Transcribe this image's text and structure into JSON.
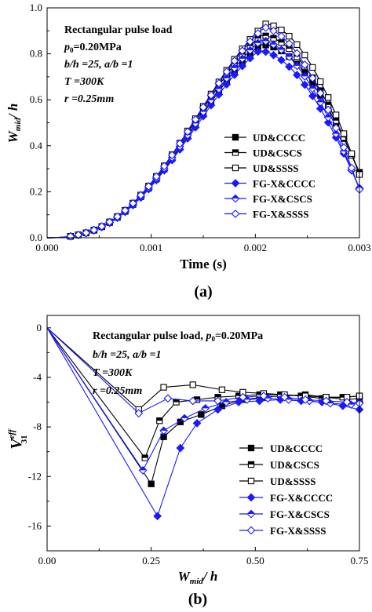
{
  "chart_data": [
    {
      "type": "line",
      "panel_label": "(a)",
      "xlabel": "Time (s)",
      "ylabel": {
        "main": "W",
        "sub": "mid",
        "rest": "/ h"
      },
      "xlim": [
        0,
        0.003
      ],
      "ylim": [
        0,
        1.0
      ],
      "xticks": [
        "0.000",
        "0.001",
        "0.002",
        "0.003"
      ],
      "yticks": [
        "0.0",
        "0.2",
        "0.4",
        "0.6",
        "0.8",
        "1.0"
      ],
      "annotations": {
        "line1": "Rectangular pulse load",
        "line2": {
          "p": "p",
          "sub": "0",
          "rest": "=0.20MPa"
        },
        "line3": "b/h =25, a/b =1",
        "line4": "T =300K",
        "line5": "r =0.25mm"
      },
      "legend_position": "right",
      "series": [
        {
          "name": "UD&CCCC",
          "color": "#000000",
          "marker": "square-filled",
          "peak_y": 0.84,
          "peak_x": 0.00205
        },
        {
          "name": "UD&CSCS",
          "color": "#000000",
          "marker": "square-half",
          "peak_y": 0.88,
          "peak_x": 0.00206
        },
        {
          "name": "UD&SSSS",
          "color": "#000000",
          "marker": "square-open",
          "peak_y": 0.93,
          "peak_x": 0.0021
        },
        {
          "name": "FG-X&CCCC",
          "color": "#1a1aff",
          "marker": "diamond-filled",
          "peak_y": 0.815,
          "peak_x": 0.00204
        },
        {
          "name": "FG-X&CSCS",
          "color": "#1a1aff",
          "marker": "diamond-half",
          "peak_y": 0.86,
          "peak_x": 0.00206
        },
        {
          "name": "FG-X&SSSS",
          "color": "#1a1aff",
          "marker": "diamond-open",
          "peak_y": 0.915,
          "peak_x": 0.00209
        }
      ]
    },
    {
      "type": "line",
      "panel_label": "(b)",
      "xlabel": {
        "main": "W",
        "sub": "mid",
        "rest": "/ h"
      },
      "ylabel": {
        "main": "V",
        "sup": "eff",
        "sub": "31"
      },
      "xlim": [
        0,
        0.75
      ],
      "ylim": [
        -18,
        1
      ],
      "xticks": [
        "0.00",
        "0.25",
        "0.50",
        "0.75"
      ],
      "yticks": [
        "0",
        "-4",
        "-8",
        "-12",
        "-16"
      ],
      "annotations": {
        "line1": {
          "pre": "Rectangular pulse load, ",
          "p": "p",
          "sub": "0",
          "rest": "=0.20MPa"
        },
        "line2": "b/h =25, a/b =1",
        "line3": "T =300K",
        "line4": "r =0.25mm"
      },
      "legend_position": "bottom-right",
      "series": [
        {
          "name": "UD&CCCC",
          "color": "#000000",
          "marker": "square-filled",
          "x": [
            0,
            0.25,
            0.28,
            0.32,
            0.37,
            0.42,
            0.47,
            0.52,
            0.57,
            0.62,
            0.67,
            0.72,
            0.75
          ],
          "y": [
            0,
            -12.6,
            -8.8,
            -7.6,
            -7.0,
            -6.3,
            -5.8,
            -5.6,
            -5.5,
            -5.4,
            -5.6,
            -5.8,
            -5.7
          ]
        },
        {
          "name": "UD&CSCS",
          "color": "#000000",
          "marker": "square-half",
          "x": [
            0,
            0.235,
            0.27,
            0.31,
            0.36,
            0.41,
            0.46,
            0.51,
            0.56,
            0.61,
            0.66,
            0.71,
            0.75
          ],
          "y": [
            0,
            -10.5,
            -7.5,
            -6.0,
            -5.8,
            -5.6,
            -5.5,
            -5.4,
            -5.4,
            -5.5,
            -5.7,
            -5.6,
            -5.5
          ]
        },
        {
          "name": "UD&SSSS",
          "color": "#000000",
          "marker": "square-open",
          "x": [
            0,
            0.22,
            0.28,
            0.35,
            0.42,
            0.47,
            0.52,
            0.57,
            0.62,
            0.67,
            0.72,
            0.75
          ],
          "y": [
            0,
            -6.6,
            -4.8,
            -4.6,
            -5.0,
            -5.2,
            -5.3,
            -5.4,
            -5.5,
            -5.6,
            -5.6,
            -5.5
          ]
        },
        {
          "name": "FG-X&CCCC",
          "color": "#1a1aff",
          "marker": "diamond-filled",
          "x": [
            0,
            0.265,
            0.32,
            0.36,
            0.41,
            0.46,
            0.51,
            0.56,
            0.61,
            0.66,
            0.71,
            0.75
          ],
          "y": [
            0,
            -15.2,
            -9.7,
            -7.7,
            -6.6,
            -6.0,
            -5.9,
            -5.8,
            -5.9,
            -6.0,
            -6.3,
            -6.6
          ]
        },
        {
          "name": "FG-X&CSCS",
          "color": "#1a1aff",
          "marker": "diamond-half",
          "x": [
            0,
            0.23,
            0.28,
            0.33,
            0.38,
            0.43,
            0.48,
            0.53,
            0.58,
            0.63,
            0.68,
            0.73,
            0.75
          ],
          "y": [
            0,
            -11.5,
            -8.3,
            -7.3,
            -6.5,
            -6.0,
            -5.8,
            -5.7,
            -5.8,
            -5.9,
            -6.1,
            -6.2,
            -6.0
          ]
        },
        {
          "name": "FG-X&SSSS",
          "color": "#1a1aff",
          "marker": "diamond-open",
          "x": [
            0,
            0.22,
            0.29,
            0.35,
            0.41,
            0.47,
            0.52,
            0.57,
            0.62,
            0.67,
            0.72,
            0.75
          ],
          "y": [
            0,
            -6.9,
            -5.7,
            -5.9,
            -5.9,
            -5.6,
            -5.5,
            -5.6,
            -5.8,
            -5.9,
            -6.0,
            -6.1
          ]
        }
      ]
    }
  ]
}
